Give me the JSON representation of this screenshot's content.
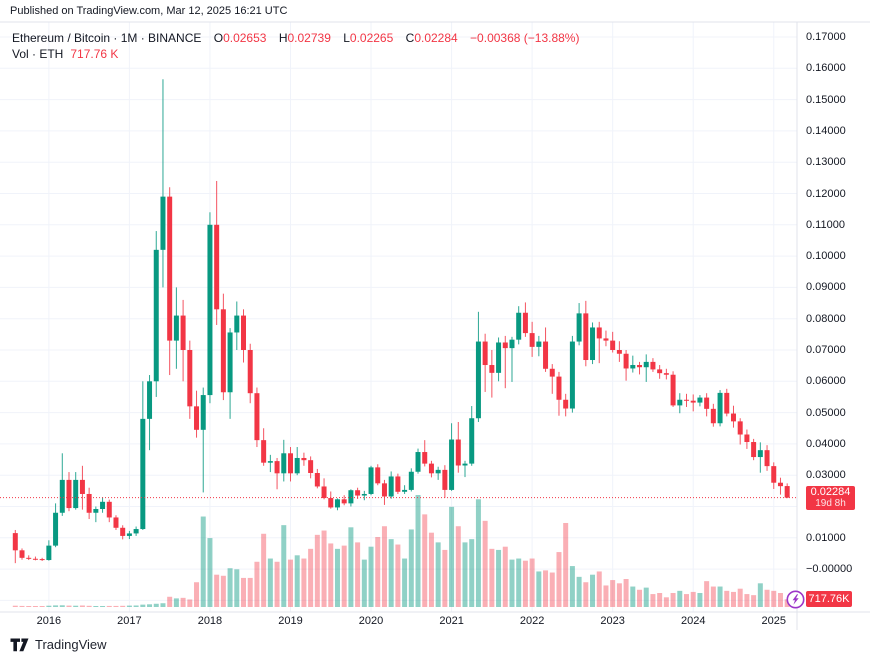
{
  "published_bar": {
    "text": "Published on TradingView.com, Mar 12, 2025 16:21 UTC"
  },
  "legend": {
    "title": "Ethereum / Bitcoin · 1M · BINANCE",
    "ohlc": [
      {
        "k": "O",
        "v": "0.02653"
      },
      {
        "k": "H",
        "v": "0.02739"
      },
      {
        "k": "L",
        "v": "0.02265"
      },
      {
        "k": "C",
        "v": "0.02284"
      }
    ],
    "change": "−0.00368 (−13.88%)",
    "volume_title": "Vol · ETH",
    "volume_value": "717.76 K"
  },
  "footer": {
    "brand": "TradingView"
  },
  "colors": {
    "up": "#089981",
    "down": "#f23645",
    "up_volume": "rgba(8,153,129,0.45)",
    "down_volume": "rgba(242,54,69,0.4)",
    "grid": "#f0f3fa",
    "axis_border": "#e0e3eb",
    "text": "#131722",
    "badge_bg": "#f23645",
    "boost_purple": "#9C36C9"
  },
  "chart_data": {
    "type": "candlestick",
    "title": "Ethereum / Bitcoin",
    "exchange": "BINANCE",
    "interval": "1M",
    "volume_unit": "ETH",
    "legend_position": "top-left",
    "grid": true,
    "last_price": 0.02284,
    "last_price_label": "0.02284",
    "countdown_label": "19d 8h",
    "last_volume_label": "717.76K",
    "ylim": [
      -0.0137,
      0.1748
    ],
    "price_axis_ticks": [
      {
        "label": "0.17000",
        "value": 0.17
      },
      {
        "label": "0.16000",
        "value": 0.16
      },
      {
        "label": "0.15000",
        "value": 0.15
      },
      {
        "label": "0.14000",
        "value": 0.14
      },
      {
        "label": "0.13000",
        "value": 0.13
      },
      {
        "label": "0.12000",
        "value": 0.12
      },
      {
        "label": "0.11000",
        "value": 0.11
      },
      {
        "label": "0.10000",
        "value": 0.1
      },
      {
        "label": "0.09000",
        "value": 0.09
      },
      {
        "label": "0.08000",
        "value": 0.08
      },
      {
        "label": "0.07000",
        "value": 0.07
      },
      {
        "label": "0.06000",
        "value": 0.06
      },
      {
        "label": "0.05000",
        "value": 0.05
      },
      {
        "label": "0.04000",
        "value": 0.04
      },
      {
        "label": "0.03000",
        "value": 0.03
      },
      {
        "label": "0.01000",
        "value": 0.01
      },
      {
        "label": "−0.00000",
        "value": 0.0
      }
    ],
    "unlabeled_gridlines": [
      0.02,
      -0.01
    ],
    "time_axis_years": [
      {
        "label": "2016",
        "month_index": 5
      },
      {
        "label": "2017",
        "month_index": 17
      },
      {
        "label": "2018",
        "month_index": 29
      },
      {
        "label": "2019",
        "month_index": 41
      },
      {
        "label": "2020",
        "month_index": 53
      },
      {
        "label": "2021",
        "month_index": 65
      },
      {
        "label": "2022",
        "month_index": 77
      },
      {
        "label": "2023",
        "month_index": 89
      },
      {
        "label": "2024",
        "month_index": 101
      },
      {
        "label": "2025",
        "month_index": 113
      }
    ],
    "columns": [
      "month",
      "open",
      "high",
      "low",
      "close",
      "volume_eth"
    ],
    "candles": [
      [
        "2015-08",
        0.0115,
        0.0125,
        0.0019,
        0.006,
        120000
      ],
      [
        "2015-09",
        0.006,
        0.0066,
        0.003,
        0.0036,
        100000
      ],
      [
        "2015-10",
        0.0036,
        0.0044,
        0.0029,
        0.0033,
        80000
      ],
      [
        "2015-11",
        0.0033,
        0.004,
        0.0028,
        0.0032,
        80000
      ],
      [
        "2015-12",
        0.0032,
        0.0036,
        0.0026,
        0.0029,
        90000
      ],
      [
        "2016-01",
        0.0029,
        0.0092,
        0.0027,
        0.0075,
        120000
      ],
      [
        "2016-02",
        0.0075,
        0.021,
        0.007,
        0.018,
        150000
      ],
      [
        "2016-03",
        0.018,
        0.037,
        0.017,
        0.0285,
        160000
      ],
      [
        "2016-04",
        0.0285,
        0.031,
        0.0185,
        0.0195,
        130000
      ],
      [
        "2016-05",
        0.0195,
        0.031,
        0.019,
        0.0285,
        120000
      ],
      [
        "2016-06",
        0.0285,
        0.033,
        0.019,
        0.024,
        140000
      ],
      [
        "2016-07",
        0.024,
        0.026,
        0.016,
        0.018,
        110000
      ],
      [
        "2016-08",
        0.018,
        0.02,
        0.015,
        0.0192,
        90000
      ],
      [
        "2016-09",
        0.0192,
        0.023,
        0.018,
        0.0215,
        90000
      ],
      [
        "2016-10",
        0.0215,
        0.0222,
        0.015,
        0.0165,
        100000
      ],
      [
        "2016-11",
        0.0165,
        0.0172,
        0.0125,
        0.0132,
        100000
      ],
      [
        "2016-12",
        0.0132,
        0.014,
        0.0095,
        0.0106,
        110000
      ],
      [
        "2017-01",
        0.0106,
        0.0122,
        0.0096,
        0.0114,
        130000
      ],
      [
        "2017-02",
        0.0114,
        0.0136,
        0.0106,
        0.0128,
        140000
      ],
      [
        "2017-03",
        0.0128,
        0.06,
        0.0125,
        0.048,
        220000
      ],
      [
        "2017-04",
        0.048,
        0.062,
        0.038,
        0.06,
        250000
      ],
      [
        "2017-05",
        0.06,
        0.108,
        0.055,
        0.102,
        300000
      ],
      [
        "2017-06",
        0.102,
        0.1565,
        0.09,
        0.119,
        350000
      ],
      [
        "2017-07",
        0.119,
        0.122,
        0.062,
        0.073,
        950000
      ],
      [
        "2017-08",
        0.073,
        0.09,
        0.064,
        0.081,
        800000
      ],
      [
        "2017-09",
        0.081,
        0.086,
        0.06,
        0.07,
        850000
      ],
      [
        "2017-10",
        0.07,
        0.073,
        0.048,
        0.052,
        700000
      ],
      [
        "2017-11",
        0.052,
        0.057,
        0.042,
        0.0445,
        2300000
      ],
      [
        "2017-12",
        0.0445,
        0.058,
        0.0245,
        0.0556,
        8400000
      ],
      [
        "2018-01",
        0.0556,
        0.114,
        0.053,
        0.11,
        6400000
      ],
      [
        "2018-02",
        0.11,
        0.124,
        0.078,
        0.083,
        3000000
      ],
      [
        "2018-03",
        0.083,
        0.088,
        0.054,
        0.0565,
        2900000
      ],
      [
        "2018-04",
        0.0565,
        0.077,
        0.048,
        0.0756,
        3600000
      ],
      [
        "2018-05",
        0.0756,
        0.0855,
        0.07,
        0.081,
        3500000
      ],
      [
        "2018-06",
        0.081,
        0.083,
        0.066,
        0.07,
        2700000
      ],
      [
        "2018-07",
        0.07,
        0.072,
        0.053,
        0.0562,
        2700000
      ],
      [
        "2018-08",
        0.0562,
        0.058,
        0.039,
        0.0412,
        4200000
      ],
      [
        "2018-09",
        0.0412,
        0.045,
        0.033,
        0.034,
        6800000
      ],
      [
        "2018-10",
        0.034,
        0.0365,
        0.031,
        0.0345,
        4500000
      ],
      [
        "2018-11",
        0.0345,
        0.0355,
        0.0255,
        0.0306,
        4200000
      ],
      [
        "2018-12",
        0.0306,
        0.0413,
        0.028,
        0.037,
        7600000
      ],
      [
        "2019-01",
        0.037,
        0.039,
        0.028,
        0.0306,
        4400000
      ],
      [
        "2019-02",
        0.0306,
        0.039,
        0.03,
        0.0355,
        4800000
      ],
      [
        "2019-03",
        0.0355,
        0.0372,
        0.033,
        0.0348,
        4500000
      ],
      [
        "2019-04",
        0.0348,
        0.036,
        0.029,
        0.0307,
        5400000
      ],
      [
        "2019-05",
        0.0307,
        0.032,
        0.0258,
        0.0264,
        6700000
      ],
      [
        "2019-06",
        0.0264,
        0.029,
        0.0223,
        0.0227,
        7100000
      ],
      [
        "2019-07",
        0.0227,
        0.0248,
        0.0193,
        0.0197,
        5900000
      ],
      [
        "2019-08",
        0.0197,
        0.0226,
        0.0188,
        0.0223,
        5400000
      ],
      [
        "2019-09",
        0.0223,
        0.0236,
        0.0204,
        0.021,
        5700000
      ],
      [
        "2019-10",
        0.021,
        0.0255,
        0.02,
        0.0252,
        7400000
      ],
      [
        "2019-11",
        0.0252,
        0.026,
        0.0224,
        0.0235,
        6000000
      ],
      [
        "2019-12",
        0.0235,
        0.025,
        0.022,
        0.024,
        4400000
      ],
      [
        "2020-01",
        0.024,
        0.033,
        0.0236,
        0.0325,
        5600000
      ],
      [
        "2020-02",
        0.0325,
        0.0335,
        0.0268,
        0.0274,
        6500000
      ],
      [
        "2020-03",
        0.0274,
        0.0285,
        0.0205,
        0.0232,
        7500000
      ],
      [
        "2020-04",
        0.0232,
        0.0312,
        0.0225,
        0.0296,
        6300000
      ],
      [
        "2020-05",
        0.0296,
        0.0305,
        0.024,
        0.0247,
        5800000
      ],
      [
        "2020-06",
        0.0247,
        0.0268,
        0.024,
        0.0253,
        4500000
      ],
      [
        "2020-07",
        0.0253,
        0.0322,
        0.0248,
        0.0311,
        7200000
      ],
      [
        "2020-08",
        0.0311,
        0.0385,
        0.0305,
        0.0374,
        10400000
      ],
      [
        "2020-09",
        0.0374,
        0.0412,
        0.0328,
        0.0337,
        8600000
      ],
      [
        "2020-10",
        0.0337,
        0.0346,
        0.0293,
        0.0306,
        6900000
      ],
      [
        "2020-11",
        0.0306,
        0.0327,
        0.0285,
        0.0317,
        6000000
      ],
      [
        "2020-12",
        0.0317,
        0.0332,
        0.0228,
        0.0253,
        5300000
      ],
      [
        "2021-01",
        0.0253,
        0.0466,
        0.025,
        0.0414,
        9300000
      ],
      [
        "2021-02",
        0.0414,
        0.047,
        0.0308,
        0.0331,
        7500000
      ],
      [
        "2021-03",
        0.0331,
        0.0346,
        0.0294,
        0.0337,
        6000000
      ],
      [
        "2021-04",
        0.0337,
        0.0521,
        0.033,
        0.0482,
        6300000
      ],
      [
        "2021-05",
        0.0482,
        0.0822,
        0.047,
        0.0727,
        10000000
      ],
      [
        "2021-06",
        0.0727,
        0.0752,
        0.0566,
        0.0652,
        8000000
      ],
      [
        "2021-07",
        0.0652,
        0.07,
        0.0548,
        0.0627,
        5400000
      ],
      [
        "2021-08",
        0.0627,
        0.074,
        0.06,
        0.0724,
        5300000
      ],
      [
        "2021-09",
        0.0724,
        0.0745,
        0.0578,
        0.0706,
        5600000
      ],
      [
        "2021-10",
        0.0706,
        0.0742,
        0.0598,
        0.0733,
        4400000
      ],
      [
        "2021-11",
        0.0733,
        0.084,
        0.0718,
        0.0819,
        4500000
      ],
      [
        "2021-12",
        0.0819,
        0.0852,
        0.0742,
        0.0754,
        4300000
      ],
      [
        "2022-01",
        0.0754,
        0.079,
        0.0678,
        0.071,
        4500000
      ],
      [
        "2022-02",
        0.071,
        0.0745,
        0.068,
        0.0727,
        3300000
      ],
      [
        "2022-03",
        0.0727,
        0.0772,
        0.063,
        0.064,
        3400000
      ],
      [
        "2022-04",
        0.064,
        0.0655,
        0.056,
        0.0615,
        3200000
      ],
      [
        "2022-05",
        0.0615,
        0.063,
        0.049,
        0.0541,
        5100000
      ],
      [
        "2022-06",
        0.0541,
        0.056,
        0.0488,
        0.0513,
        7800000
      ],
      [
        "2022-07",
        0.0513,
        0.0745,
        0.05,
        0.0727,
        3800000
      ],
      [
        "2022-08",
        0.0727,
        0.085,
        0.0715,
        0.0817,
        2800000
      ],
      [
        "2022-09",
        0.0817,
        0.0857,
        0.0648,
        0.0668,
        2300000
      ],
      [
        "2022-10",
        0.0668,
        0.0788,
        0.0655,
        0.0772,
        3000000
      ],
      [
        "2022-11",
        0.0772,
        0.079,
        0.0658,
        0.0737,
        3300000
      ],
      [
        "2022-12",
        0.0737,
        0.0762,
        0.0712,
        0.073,
        2000000
      ],
      [
        "2023-01",
        0.073,
        0.0758,
        0.0692,
        0.07,
        2500000
      ],
      [
        "2023-02",
        0.07,
        0.0728,
        0.0662,
        0.0688,
        2200000
      ],
      [
        "2023-03",
        0.0688,
        0.07,
        0.0602,
        0.0641,
        2600000
      ],
      [
        "2023-04",
        0.0641,
        0.0682,
        0.0628,
        0.0652,
        1900000
      ],
      [
        "2023-05",
        0.0652,
        0.0662,
        0.0622,
        0.0645,
        1600000
      ],
      [
        "2023-06",
        0.0645,
        0.0686,
        0.0598,
        0.0662,
        1800000
      ],
      [
        "2023-07",
        0.0662,
        0.0674,
        0.063,
        0.0638,
        1200000
      ],
      [
        "2023-08",
        0.0638,
        0.0652,
        0.0608,
        0.0626,
        1300000
      ],
      [
        "2023-09",
        0.0626,
        0.064,
        0.0606,
        0.0621,
        900000
      ],
      [
        "2023-10",
        0.0621,
        0.0632,
        0.0518,
        0.0523,
        1300000
      ],
      [
        "2023-11",
        0.0523,
        0.0562,
        0.0498,
        0.0541,
        1500000
      ],
      [
        "2023-12",
        0.0541,
        0.056,
        0.0518,
        0.0538,
        1200000
      ],
      [
        "2024-01",
        0.0538,
        0.0558,
        0.0504,
        0.0532,
        1400000
      ],
      [
        "2024-02",
        0.0532,
        0.0556,
        0.052,
        0.0548,
        1300000
      ],
      [
        "2024-03",
        0.0548,
        0.0562,
        0.0488,
        0.0512,
        2400000
      ],
      [
        "2024-04",
        0.0512,
        0.0528,
        0.0455,
        0.0466,
        1900000
      ],
      [
        "2024-05",
        0.0466,
        0.0572,
        0.0456,
        0.0563,
        1900000
      ],
      [
        "2024-06",
        0.0563,
        0.0576,
        0.0488,
        0.0497,
        1500000
      ],
      [
        "2024-07",
        0.0497,
        0.0522,
        0.0452,
        0.0472,
        1400000
      ],
      [
        "2024-08",
        0.0472,
        0.0482,
        0.0398,
        0.043,
        1700000
      ],
      [
        "2024-09",
        0.043,
        0.0446,
        0.0384,
        0.0406,
        1200000
      ],
      [
        "2024-10",
        0.0406,
        0.0416,
        0.0348,
        0.0358,
        1100000
      ],
      [
        "2024-11",
        0.0358,
        0.0405,
        0.0308,
        0.038,
        2200000
      ],
      [
        "2024-12",
        0.038,
        0.0396,
        0.0314,
        0.0329,
        1600000
      ],
      [
        "2025-01",
        0.0329,
        0.0341,
        0.0256,
        0.0276,
        1500000
      ],
      [
        "2025-02",
        0.0276,
        0.0292,
        0.0238,
        0.0265,
        1300000
      ],
      [
        "2025-03",
        0.02653,
        0.02739,
        0.02265,
        0.02284,
        717760
      ]
    ]
  }
}
